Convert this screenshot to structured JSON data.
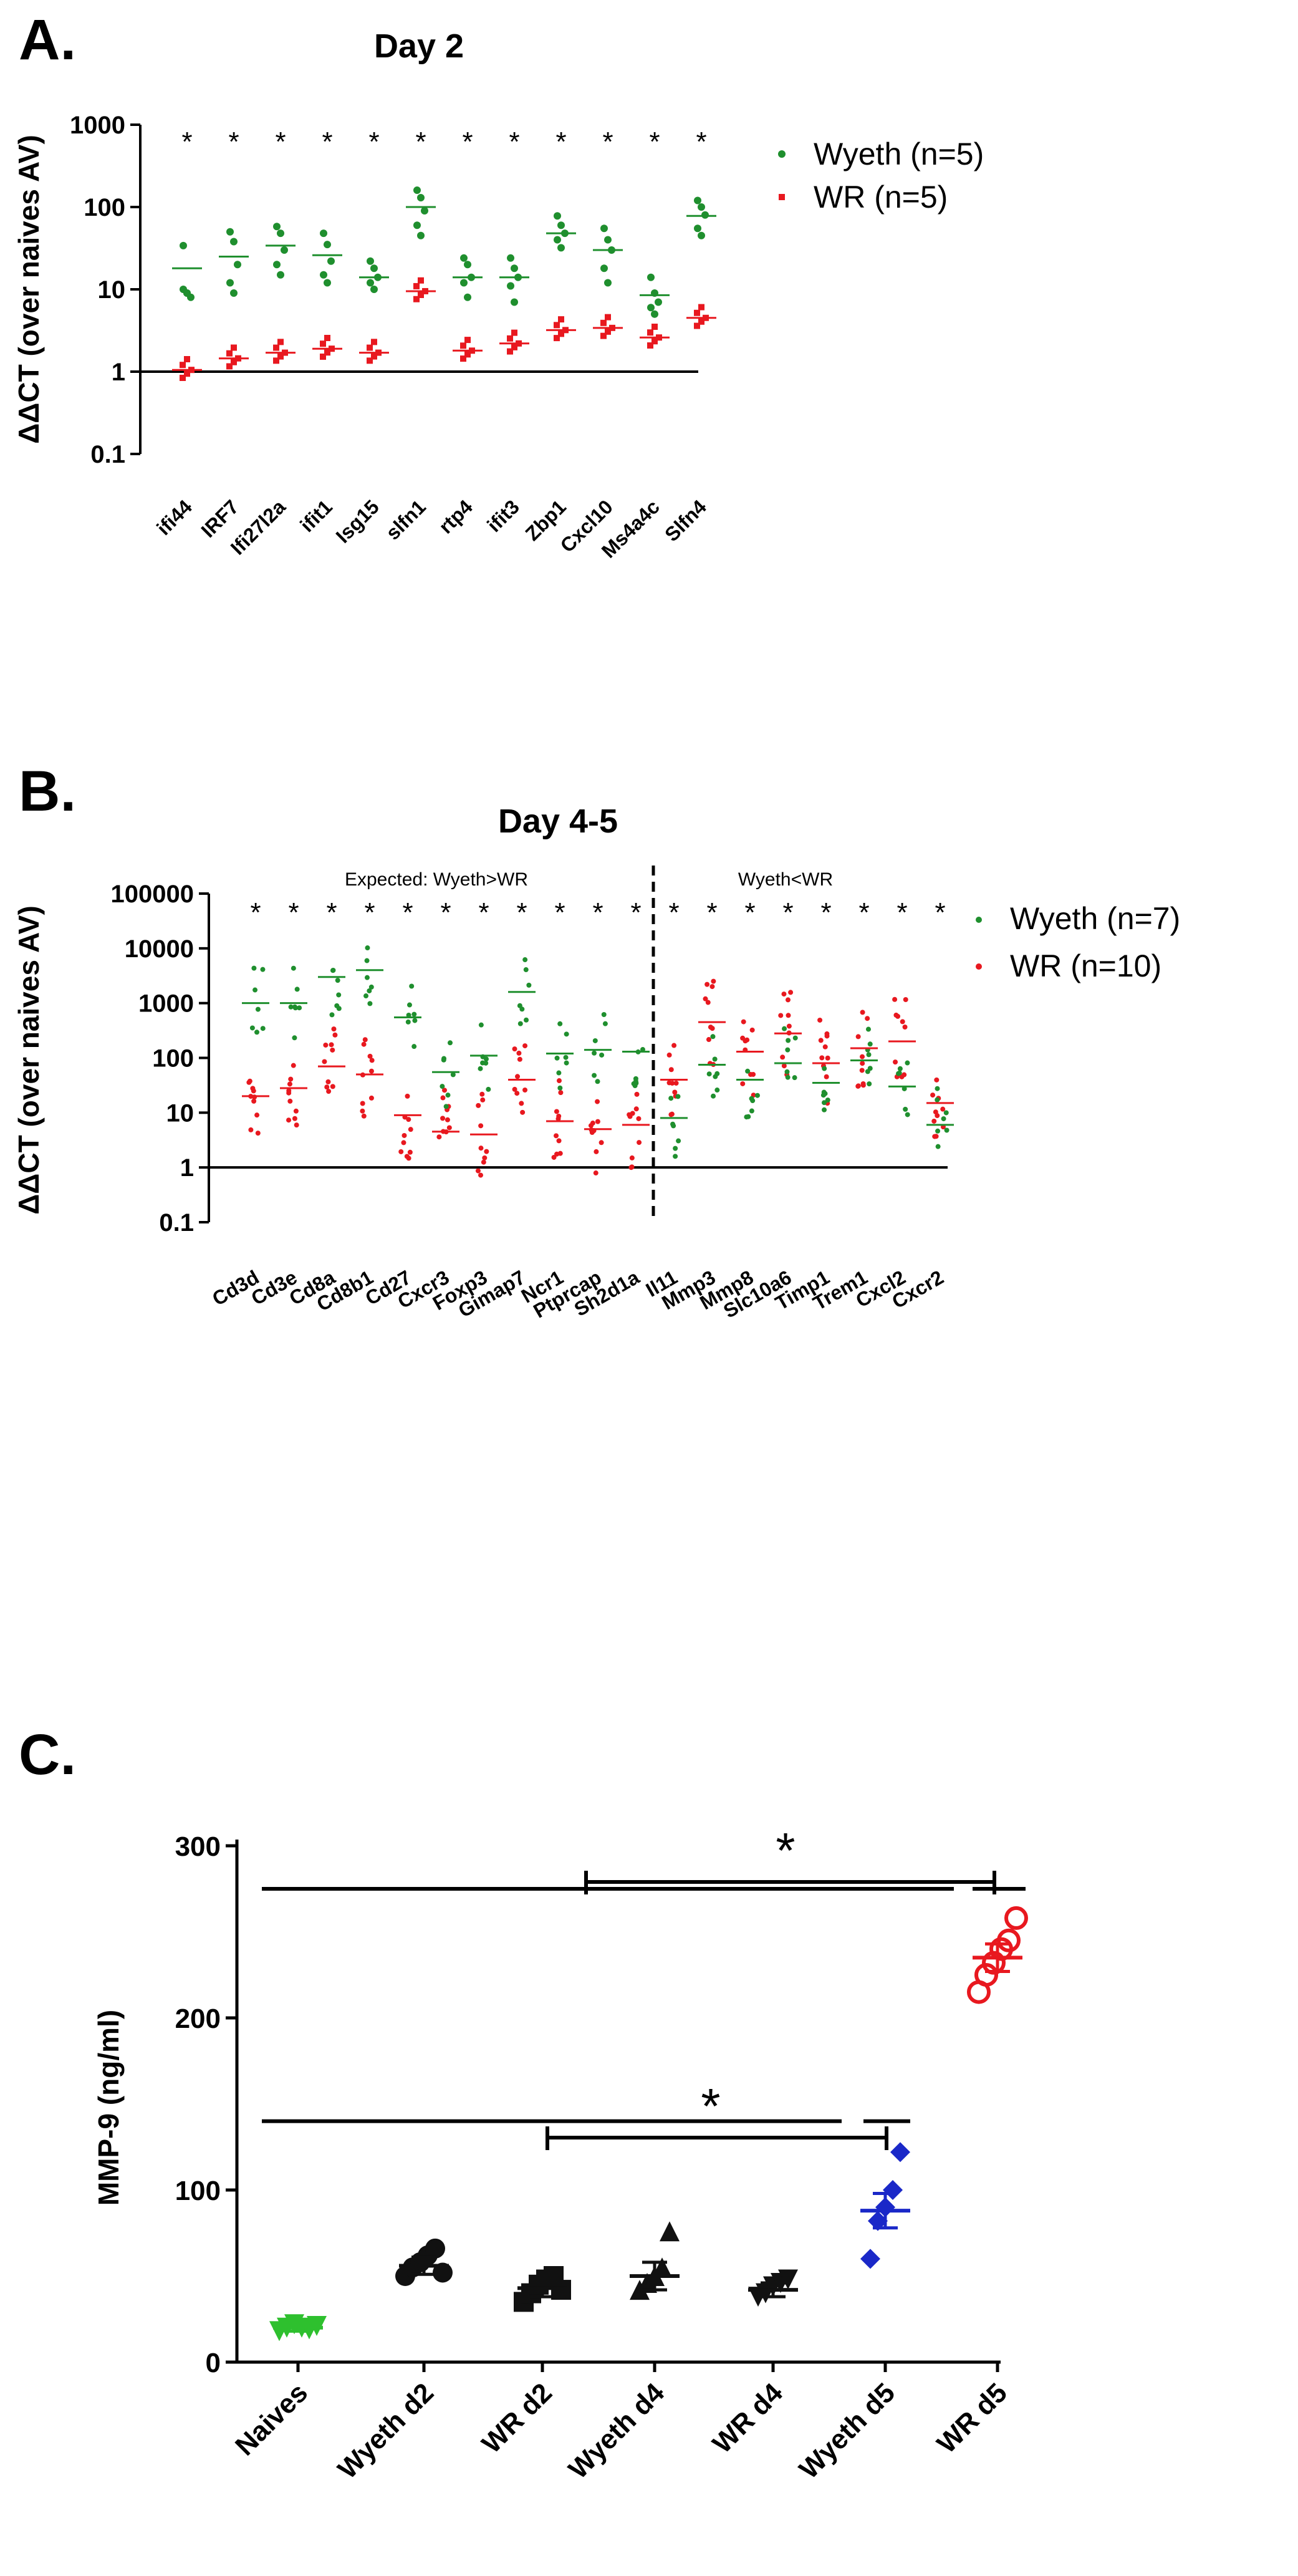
{
  "panels": {
    "a": "A.",
    "b": "B.",
    "c": "C."
  },
  "colors": {
    "wyeth": "#1f8f2e",
    "wr": "#e8181f",
    "naive": "#2ec02e",
    "blue": "#1a28c8",
    "black": "#111111"
  },
  "chart_data": [
    {
      "type": "scatter",
      "title": "Day 2",
      "ylabel": "ΔΔCT (over naives AV)",
      "yscale": "log",
      "ylim": [
        0.1,
        1000
      ],
      "yticks": [
        0.1,
        1,
        10,
        100,
        1000
      ],
      "ytick_labels": [
        "0.1",
        "1",
        "10",
        "100",
        "1000"
      ],
      "categories": [
        "ifi44",
        "IRF7",
        "Ifi27l2a",
        "ifit1",
        "Isg15",
        "slfn1",
        "rtp4",
        "ifit3",
        "Zbp1",
        "Cxcl10",
        "Ms4a4c",
        "Slfn4"
      ],
      "significance": [
        "*",
        "*",
        "*",
        "*",
        "*",
        "*",
        "*",
        "*",
        "*",
        "*",
        "*",
        "*"
      ],
      "baseline": 1,
      "legend": [
        "Wyeth (n=5)",
        "WR (n=5)"
      ],
      "series": [
        {
          "name": "Wyeth (n=5)",
          "means": [
            18,
            25,
            34,
            26,
            14,
            100,
            14,
            14,
            48,
            30,
            8.5,
            78
          ],
          "points": [
            [
              34,
              9,
              8,
              10,
              9
            ],
            [
              50,
              38,
              20,
              12,
              9
            ],
            [
              58,
              48,
              30,
              20,
              15
            ],
            [
              48,
              35,
              22,
              15,
              12
            ],
            [
              22,
              18,
              14,
              12,
              10
            ],
            [
              160,
              130,
              90,
              60,
              45
            ],
            [
              24,
              20,
              14,
              12,
              8
            ],
            [
              24,
              18,
              14,
              11,
              7
            ],
            [
              78,
              60,
              48,
              40,
              32
            ],
            [
              55,
              40,
              30,
              18,
              12
            ],
            [
              14,
              9,
              7,
              6,
              5
            ],
            [
              120,
              100,
              80,
              55,
              45
            ]
          ]
        },
        {
          "name": "WR (n=5)",
          "means": [
            1.05,
            1.45,
            1.7,
            1.9,
            1.7,
            9.5,
            1.8,
            2.2,
            3.2,
            3.4,
            2.6,
            4.5
          ]
        }
      ]
    },
    {
      "type": "scatter",
      "title": "Day 4-5",
      "ylabel": "ΔΔCT (over naives AV)",
      "yscale": "log",
      "ylim": [
        0.1,
        100000
      ],
      "yticks": [
        0.1,
        1,
        10,
        100,
        1000,
        10000,
        100000
      ],
      "ytick_labels": [
        "0.1",
        "1",
        "10",
        "100",
        "1000",
        "10000",
        "100000"
      ],
      "categories": [
        "Cd3d",
        "Cd3e",
        "Cd8a",
        "Cd8b1",
        "Cd27",
        "Cxcr3",
        "Foxp3",
        "Gimap7",
        "Ncr1",
        "Ptprcap",
        "Sh2d1a",
        "Il11",
        "Mmp3",
        "Mmp8",
        "Slc10a6",
        "Timp1",
        "Trem1",
        "Cxcl2",
        "Cxcr2"
      ],
      "significance": [
        "*",
        "*",
        "*",
        "*",
        "*",
        "*",
        "*",
        "*",
        "*",
        "*",
        "*",
        "*",
        "*",
        "*",
        "*",
        "*",
        "*",
        "*",
        "*"
      ],
      "annotations": [
        "Expected: Wyeth>WR",
        "Wyeth<WR"
      ],
      "divider_after": "Sh2d1a",
      "baseline": 1,
      "legend": [
        "Wyeth (n=7)",
        "WR (n=10)"
      ],
      "series": [
        {
          "name": "Wyeth (n=7)",
          "means": [
            1000,
            1000,
            3000,
            4000,
            550,
            55,
            110,
            1600,
            120,
            140,
            130,
            8,
            75,
            40,
            80,
            35,
            90,
            30,
            6
          ]
        },
        {
          "name": "WR (n=10)",
          "means": [
            20,
            28,
            70,
            50,
            9,
            4.5,
            4,
            40,
            7,
            5,
            6,
            40,
            450,
            130,
            280,
            80,
            150,
            200,
            15
          ]
        }
      ]
    },
    {
      "type": "scatter",
      "ylabel": "MMP-9 (ng/ml)",
      "ylim": [
        0,
        300
      ],
      "yticks": [
        0,
        100,
        200,
        300
      ],
      "ytick_labels": [
        "0",
        "100",
        "200",
        "300"
      ],
      "categories": [
        "Naives",
        "Wyeth d2",
        "WR d2",
        "Wyeth d4",
        "WR d4",
        "Wyeth d5",
        "WR d5"
      ],
      "means": [
        20,
        56,
        43,
        50,
        42,
        88,
        235
      ],
      "sem": [
        2,
        5,
        5,
        8,
        4,
        10,
        8
      ],
      "points": [
        [
          18,
          20,
          22,
          20,
          19,
          21
        ],
        [
          50,
          55,
          58,
          62,
          66,
          52
        ],
        [
          35,
          40,
          45,
          48,
          50,
          42
        ],
        [
          42,
          46,
          50,
          55,
          76
        ],
        [
          38,
          40,
          44,
          46,
          48
        ],
        [
          60,
          82,
          90,
          100,
          122
        ],
        [
          215,
          225,
          232,
          240,
          245,
          258
        ]
      ],
      "markers": [
        "triangle-down",
        "circle",
        "square",
        "triangle-up",
        "triangle-down",
        "diamond",
        "open-circle"
      ],
      "significance": [
        {
          "label": "*",
          "groups_from": [
            "Naives",
            "Wyeth d4"
          ],
          "versus": "Wyeth d5",
          "y": 140
        },
        {
          "label": "*",
          "groups_from": [
            "Naives",
            "Wyeth d5"
          ],
          "versus": "WR d5",
          "y": 275
        }
      ]
    }
  ]
}
